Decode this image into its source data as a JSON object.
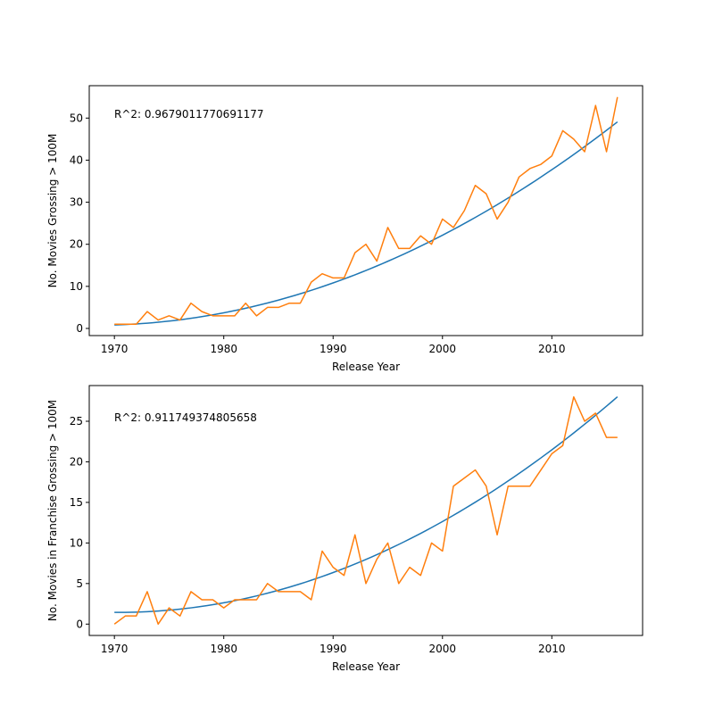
{
  "chart_data": [
    {
      "type": "line",
      "annotation": "R^2: 0.9679011770691177",
      "xlabel": "Release Year",
      "ylabel": "No. Movies Grossing > 100M",
      "xlim": [
        1967.7,
        2018.3
      ],
      "ylim": [
        -1.7,
        57.7
      ],
      "xticks": [
        1970,
        1980,
        1990,
        2000,
        2010
      ],
      "yticks": [
        0,
        10,
        20,
        30,
        40,
        50
      ],
      "fit_color": "#1f77b4",
      "actual_color": "#ff7f0e",
      "fit_curve": {
        "a": 0.02114,
        "b": 0.0767,
        "c": 0.83,
        "x0": 1970,
        "x": [
          1970,
          2016
        ]
      },
      "x": [
        1970,
        1971,
        1972,
        1973,
        1974,
        1975,
        1976,
        1977,
        1978,
        1979,
        1980,
        1981,
        1982,
        1983,
        1984,
        1985,
        1986,
        1987,
        1988,
        1989,
        1990,
        1991,
        1992,
        1993,
        1994,
        1995,
        1996,
        1997,
        1998,
        1999,
        2000,
        2001,
        2002,
        2003,
        2004,
        2005,
        2006,
        2007,
        2008,
        2009,
        2010,
        2011,
        2012,
        2013,
        2014,
        2015,
        2016
      ],
      "y": [
        1,
        1,
        1,
        4,
        2,
        3,
        2,
        6,
        4,
        3,
        3,
        3,
        6,
        3,
        5,
        5,
        6,
        6,
        11,
        13,
        12,
        12,
        18,
        20,
        16,
        24,
        19,
        19,
        22,
        20,
        26,
        24,
        28,
        34,
        32,
        26,
        30,
        36,
        38,
        39,
        41,
        47,
        45,
        42,
        53,
        42,
        55
      ]
    },
    {
      "type": "line",
      "annotation": "R^2: 0.911749374805658",
      "xlabel": "Release Year",
      "ylabel": "No. Movies in Franchise Grossing > 100M",
      "xlim": [
        1967.7,
        2018.3
      ],
      "ylim": [
        -1.4,
        29.4
      ],
      "xticks": [
        1970,
        1980,
        1990,
        2000,
        2010
      ],
      "yticks": [
        0,
        5,
        10,
        15,
        20,
        25
      ],
      "fit_color": "#1f77b4",
      "actual_color": "#ff7f0e",
      "fit_curve": {
        "a": 0.01278,
        "b": -0.0104,
        "c": 1.45,
        "x0": 1970,
        "x": [
          1970,
          2016
        ]
      },
      "x": [
        1970,
        1971,
        1972,
        1973,
        1974,
        1975,
        1976,
        1977,
        1978,
        1979,
        1980,
        1981,
        1982,
        1983,
        1984,
        1985,
        1986,
        1987,
        1988,
        1989,
        1990,
        1991,
        1992,
        1993,
        1994,
        1995,
        1996,
        1997,
        1998,
        1999,
        2000,
        2001,
        2002,
        2003,
        2004,
        2005,
        2006,
        2007,
        2008,
        2009,
        2010,
        2011,
        2012,
        2013,
        2014,
        2015,
        2016
      ],
      "y": [
        0,
        1,
        1,
        4,
        0,
        2,
        1,
        4,
        3,
        3,
        2,
        3,
        3,
        3,
        5,
        4,
        4,
        4,
        3,
        9,
        7,
        6,
        11,
        5,
        8,
        10,
        5,
        7,
        6,
        10,
        9,
        17,
        18,
        19,
        17,
        11,
        17,
        17,
        17,
        19,
        21,
        22,
        28,
        25,
        26,
        23,
        23
      ]
    }
  ]
}
